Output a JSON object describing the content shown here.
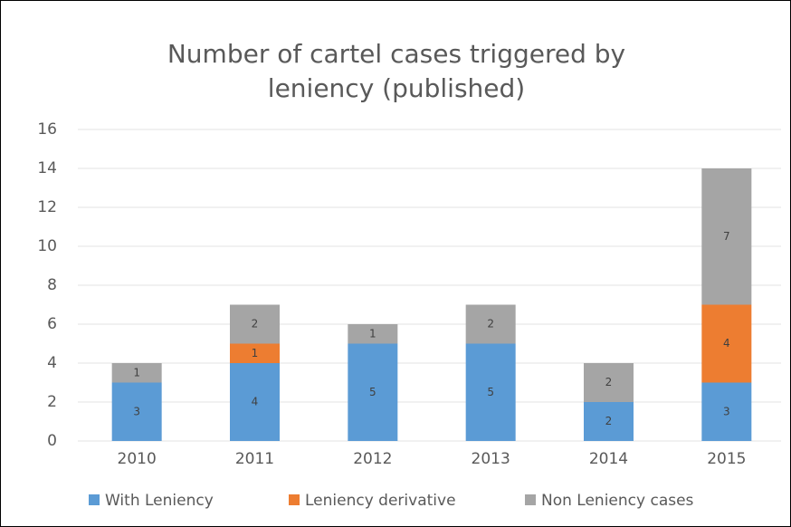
{
  "chart_data": {
    "type": "bar",
    "stacked": true,
    "title": "Number of cartel cases triggered by leniency (published)",
    "categories": [
      "2010",
      "2011",
      "2012",
      "2013",
      "2014",
      "2015"
    ],
    "series": [
      {
        "name": "With Leniency",
        "color": "#5b9bd5",
        "values": [
          3,
          4,
          5,
          5,
          2,
          3
        ]
      },
      {
        "name": "Leniency derivative",
        "color": "#ed7d31",
        "values": [
          null,
          1,
          null,
          null,
          null,
          4
        ]
      },
      {
        "name": "Non Leniency cases",
        "color": "#a5a5a5",
        "values": [
          1,
          2,
          1,
          2,
          2,
          7
        ]
      }
    ],
    "ylim": [
      0,
      16
    ],
    "yticks": [
      0,
      2,
      4,
      6,
      8,
      10,
      12,
      14,
      16
    ],
    "grid": true,
    "legend": "bottom"
  }
}
